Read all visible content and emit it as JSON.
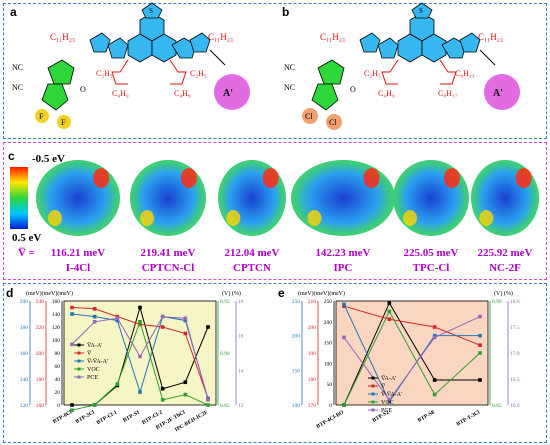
{
  "panels": {
    "a": {
      "label": "a",
      "chain": "C₁₁H₂₃",
      "chain_r": "C₁₁H₂₃",
      "c2": "C₂H₅",
      "c4a": "C₄H₉",
      "c4b": "C₄H₉",
      "c2b": "C₂H₅",
      "nc1": "NC",
      "nc2": "NC",
      "o": "O",
      "f1": "F",
      "f2": "F",
      "aprime": "A'",
      "s": "S"
    },
    "b": {
      "label": "b",
      "chain": "C₁₁H₂₃",
      "chain_r": "C₁₁H₂₃",
      "c2": "C₂H₅",
      "c4a": "C₄H₉",
      "c6": "C₆H₁₃",
      "c8": "C₈H₁₇",
      "nc1": "NC",
      "nc2": "NC",
      "o": "O",
      "cl1": "Cl",
      "cl2": "Cl",
      "aprime": "A'",
      "s": "S"
    },
    "c": {
      "label": "c",
      "scale_top": "-0.5 eV",
      "scale_bottom": "0.5 eV",
      "vbar_label": "V̅ =",
      "molecules": [
        {
          "value": "116.21 meV",
          "name": "I-4Cl"
        },
        {
          "value": "219.41 meV",
          "name": "CPTCN-Cl"
        },
        {
          "value": "212.04 meV",
          "name": "CPTCN"
        },
        {
          "value": "142.23 meV",
          "name": "IPC"
        },
        {
          "value": "225.05 meV",
          "name": "TPC-Cl"
        },
        {
          "value": "225.92 meV",
          "name": "NC-2F"
        }
      ]
    },
    "d": {
      "label": "d",
      "unit_left": "(meV)(meV)(meV)",
      "unit_right": "(V)    (%)",
      "left_axes": [
        {
          "color": "#000000",
          "ticks": [
            "160",
            "140",
            "120",
            "100",
            "80",
            "60",
            "40",
            "20",
            "0"
          ]
        },
        {
          "color": "#d62728",
          "ticks": [
            "240",
            "220",
            "200",
            "180",
            "160"
          ]
        },
        {
          "color": "#1f77b4",
          "ticks": [
            "200",
            "180",
            "160",
            "140",
            "120"
          ]
        }
      ],
      "right_axes": [
        {
          "color": "#2ca02c",
          "ticks": [
            "0.95",
            "0.90",
            "0.85"
          ]
        },
        {
          "color": "#9467bd",
          "ticks": [
            "18",
            "16",
            "14",
            "12"
          ]
        }
      ],
      "categories": [
        "BTP-0Cl",
        "BTP-2Cl",
        "BTP-Cl-1",
        "BTP-S1",
        "BTP-Cl-2",
        "BTP-2F-ThCl",
        "IPC-BEH-IC2F"
      ],
      "legend": [
        "V̅A-A'",
        "V̅",
        "V̅-V̅A-A'",
        "VOC",
        "PCE"
      ]
    },
    "e": {
      "label": "e",
      "unit_left": "(meV)(meV)(meV)",
      "unit_right": "(V)    (%)",
      "left_axes": [
        {
          "color": "#000000",
          "ticks": [
            "250",
            "200",
            "150",
            "100",
            "50",
            "0"
          ]
        },
        {
          "color": "#d62728",
          "ticks": [
            "210",
            "200",
            "190",
            "180",
            "170"
          ]
        },
        {
          "color": "#1f77b4",
          "ticks": [
            "250",
            "200",
            "150",
            "100"
          ]
        }
      ],
      "right_axes": [
        {
          "color": "#2ca02c",
          "ticks": [
            "0.90",
            "0.85"
          ]
        },
        {
          "color": "#9467bd",
          "ticks": [
            "18.0",
            "17.5",
            "17.0",
            "16.5",
            "16.0"
          ]
        }
      ],
      "categories": [
        "BTP-4Cl-BO",
        "BTP-S2",
        "BTP-S8",
        "BTP-T-3Cl"
      ],
      "legend": [
        "V̅A-A'",
        "V̅",
        "V̅-V̅A-A'",
        "VOC",
        "PCE"
      ]
    }
  },
  "chart_data": [
    {
      "type": "line",
      "title": "",
      "categories": [
        "BTP-0Cl",
        "BTP-2Cl",
        "BTP-Cl-1",
        "BTP-S1",
        "BTP-Cl-2",
        "BTP-2F-ThCl",
        "IPC-BEH-IC2F"
      ],
      "series": [
        {
          "name": "V̅A-A'",
          "unit": "meV",
          "color": "#000000",
          "values": [
            0,
            0,
            30,
            150,
            25,
            35,
            120
          ]
        },
        {
          "name": "V̅",
          "unit": "meV",
          "color": "#d62728",
          "values": [
            235,
            234,
            228,
            222,
            220,
            215,
            165
          ]
        },
        {
          "name": "V̅-V̅A-A'",
          "unit": "meV",
          "color": "#1f77b4",
          "values": [
            190,
            188,
            185,
            130,
            188,
            185,
            125
          ]
        },
        {
          "name": "VOC",
          "unit": "V",
          "color": "#2ca02c",
          "values": [
            0.845,
            0.85,
            0.87,
            0.93,
            0.855,
            0.86,
            0.85
          ]
        },
        {
          "name": "PCE",
          "unit": "%",
          "color": "#9467bd",
          "values": [
            15.5,
            16.8,
            17.0,
            14.8,
            17.1,
            17.0,
            12.3
          ]
        }
      ]
    },
    {
      "type": "line",
      "title": "",
      "categories": [
        "BTP-4Cl-BO",
        "BTP-S2",
        "BTP-S8",
        "BTP-T-3Cl"
      ],
      "series": [
        {
          "name": "V̅A-A'",
          "unit": "meV",
          "color": "#000000",
          "values": [
            0,
            245,
            60,
            60
          ]
        },
        {
          "name": "V̅",
          "unit": "meV",
          "color": "#d62728",
          "values": [
            208,
            203,
            200,
            193
          ]
        },
        {
          "name": "V̅-V̅A-A'",
          "unit": "meV",
          "color": "#1f77b4",
          "values": [
            245,
            105,
            200,
            200
          ]
        },
        {
          "name": "VOC",
          "unit": "V",
          "color": "#2ca02c",
          "values": [
            0.83,
            0.92,
            0.84,
            0.88
          ]
        },
        {
          "name": "PCE",
          "unit": "%",
          "color": "#9467bd",
          "values": [
            17.3,
            16.1,
            17.3,
            17.7
          ]
        }
      ]
    }
  ]
}
